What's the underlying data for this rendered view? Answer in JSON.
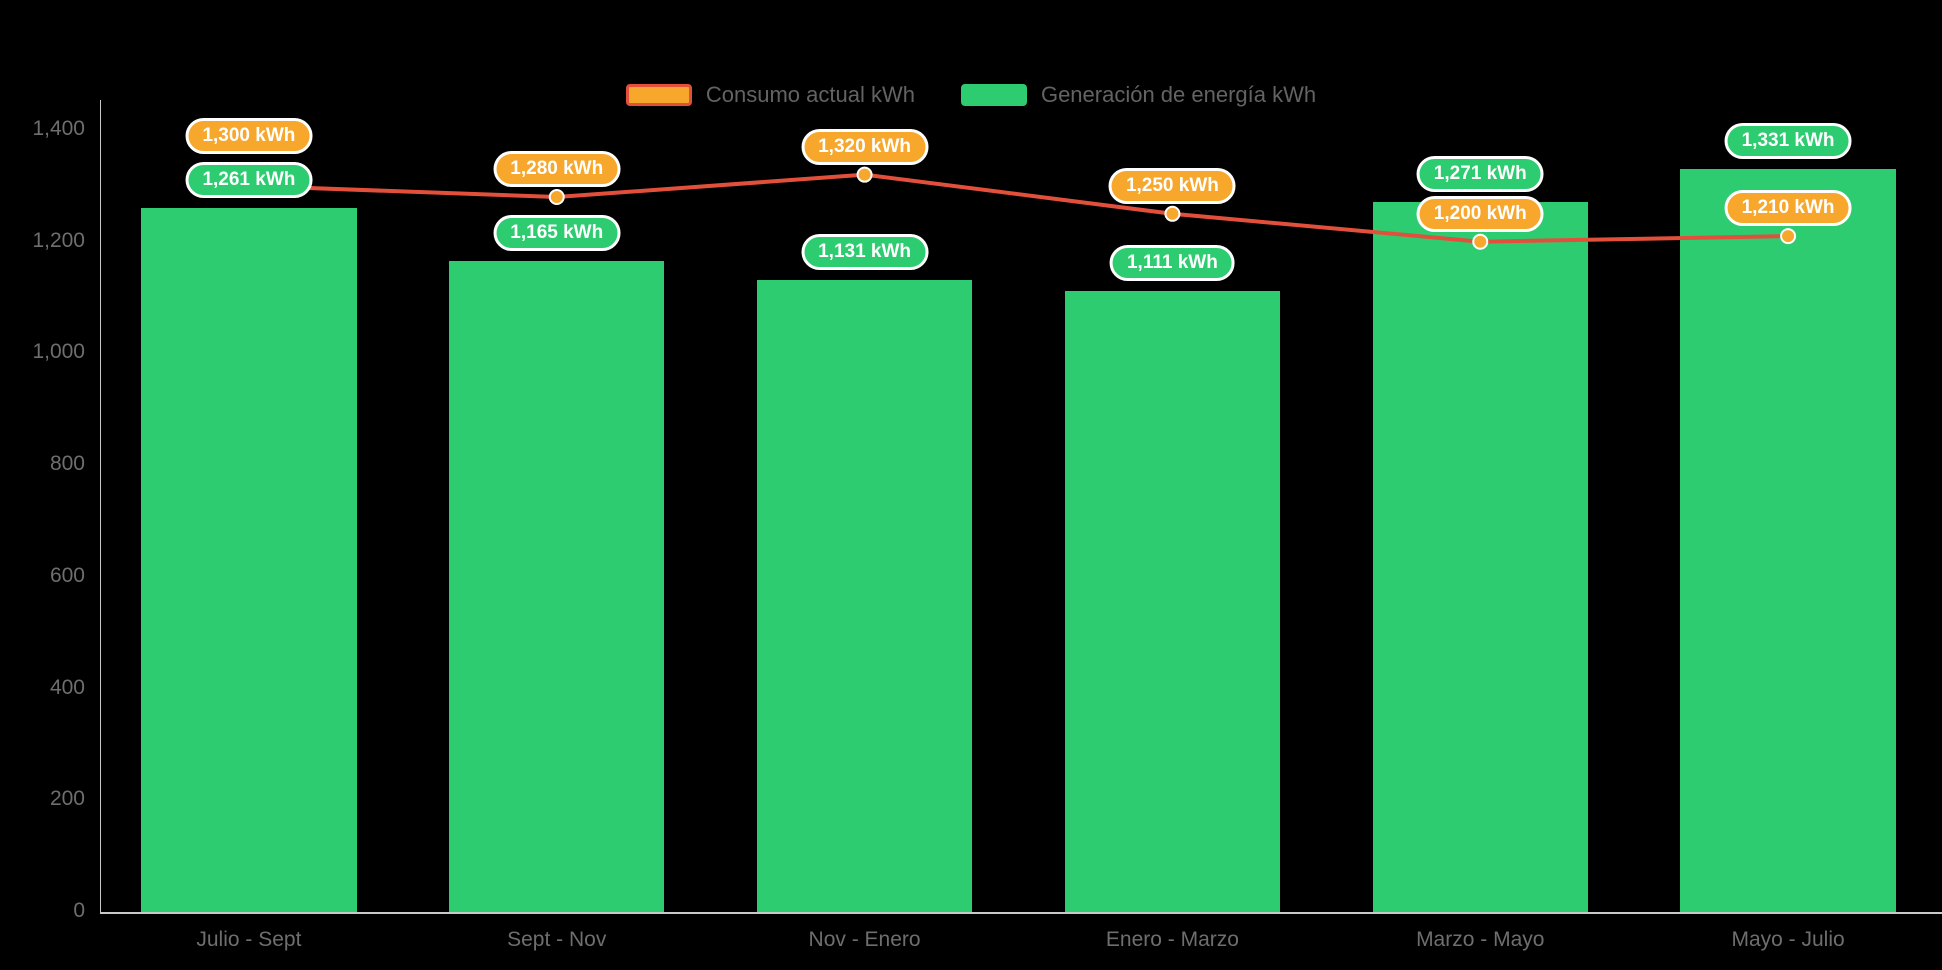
{
  "chart_data": {
    "type": "bar",
    "subtype": "bar-with-line-overlay",
    "categories": [
      "Julio - Sept",
      "Sept - Nov",
      "Nov - Enero",
      "Enero - Marzo",
      "Marzo - Mayo",
      "Mayo - Julio"
    ],
    "series": [
      {
        "name": "Consumo actual kWh",
        "type": "line",
        "values": [
          1300,
          1280,
          1320,
          1250,
          1200,
          1210
        ],
        "labels": [
          "1,300 kWh",
          "1,280 kWh",
          "1,320 kWh",
          "1,250 kWh",
          "1,200 kWh",
          "1,210 kWh"
        ]
      },
      {
        "name": "Generación de energía kWh",
        "type": "bar",
        "values": [
          1261,
          1165,
          1131,
          1111,
          1271,
          1331
        ],
        "labels": [
          "1,261 kWh",
          "1,165 kWh",
          "1,131 kWh",
          "1,111 kWh",
          "1,271 kWh",
          "1,331 kWh"
        ]
      }
    ],
    "ylim": [
      0,
      1400
    ],
    "yticks": [
      0,
      200,
      400,
      600,
      800,
      1000,
      1200,
      1400
    ],
    "ytick_labels": [
      "0",
      "200",
      "400",
      "600",
      "800",
      "1,000",
      "1,200",
      "1,400"
    ],
    "xlabel": "",
    "ylabel": "",
    "title": "",
    "grid": false,
    "legend_position": "top"
  },
  "legend": {
    "items": [
      {
        "label": "Consumo actual kWh"
      },
      {
        "label": "Generación de energía kWh"
      }
    ]
  },
  "colors": {
    "background": "#000000",
    "bar": "#2ECC71",
    "line": "#E2503C",
    "marker_fill": "#F7A72C",
    "marker_stroke": "#FFFFFF",
    "pill_consumo_bg": "#F7A72C",
    "pill_generacion_bg": "#2ECC71",
    "pill_border": "#FFFFFF",
    "pill_text": "#FFFFFF",
    "axis_text": "#6E6E6E",
    "legend_text": "#636363",
    "axis_line": "#C9C9C9"
  }
}
